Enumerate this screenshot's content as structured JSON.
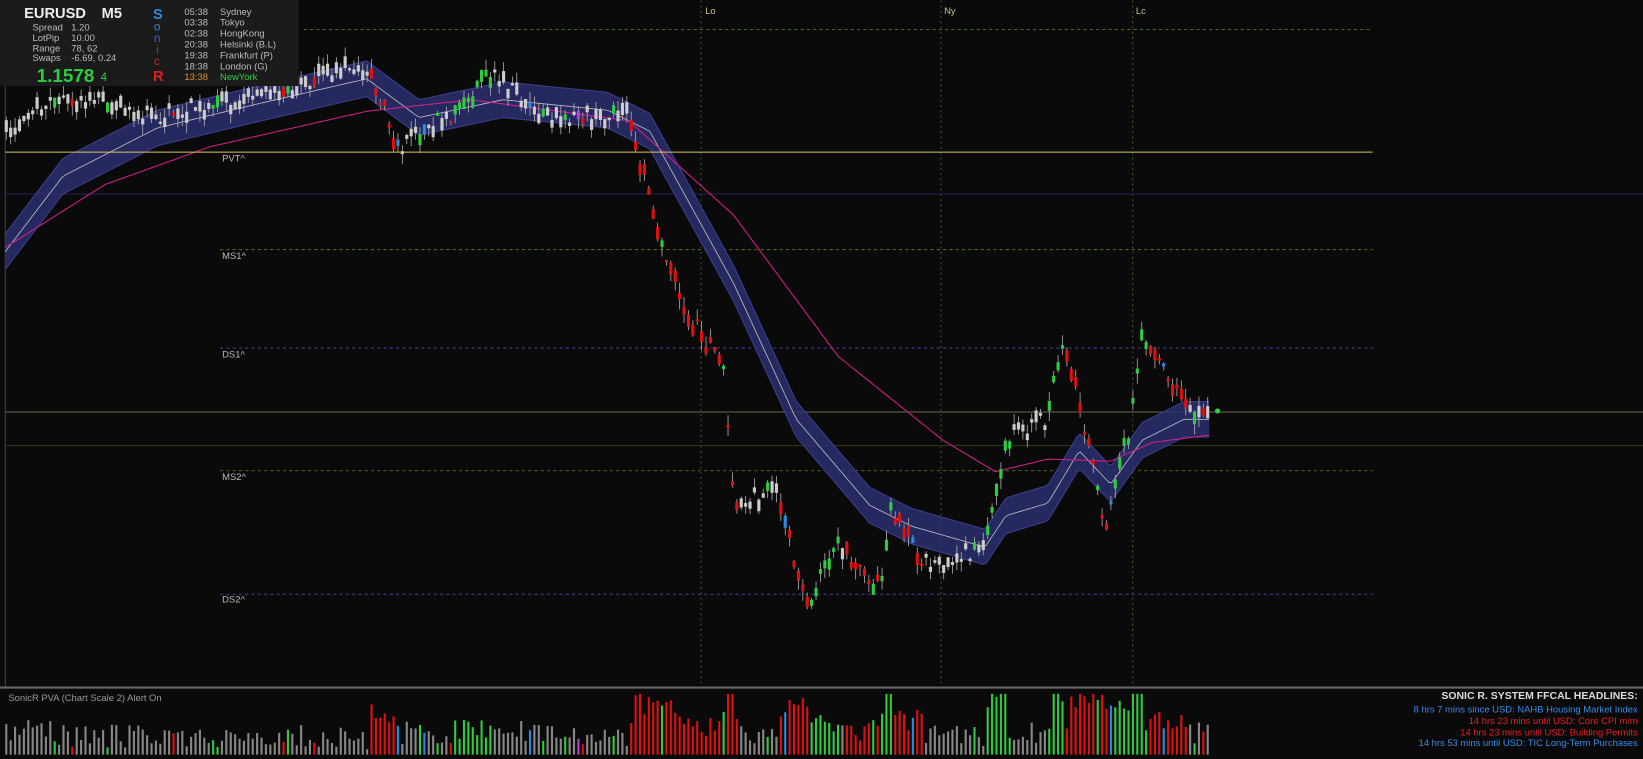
{
  "header": {
    "symbol": "EURUSD",
    "timeframe": "M5",
    "stats": [
      {
        "label": "Spread",
        "value": "1.20"
      },
      {
        "label": "LotPip",
        "value": "10.00"
      },
      {
        "label": "Range",
        "value": "78, 62"
      },
      {
        "label": "Swaps",
        "value": "-6.69, 0.24"
      }
    ],
    "price": "1.1578",
    "price_pip": "4",
    "sonic_letters": [
      "S",
      "o",
      "n",
      "i",
      "c",
      "R"
    ]
  },
  "sessions": [
    {
      "time": "05:38",
      "name": "Sydney"
    },
    {
      "time": "03:38",
      "name": "Tokyo"
    },
    {
      "time": "02:38",
      "name": "HongKong"
    },
    {
      "time": "20:38",
      "name": "Helsinki  (B.L)"
    },
    {
      "time": "19:38",
      "name": "Frankfurt  (P)"
    },
    {
      "time": "18:38",
      "name": "London  (G)"
    },
    {
      "time": "13:38",
      "name": "NewYork"
    }
  ],
  "levels": [
    "PVT^",
    "MS1^",
    "DS1^",
    "MS2^",
    "DS2^"
  ],
  "session_markers": [
    "Lo",
    "Ny",
    "Lc"
  ],
  "indicator": {
    "label": "SonicR PVA  (Chart Scale 2)   Alert On"
  },
  "headlines": {
    "title": "SONIC R. SYSTEM  FFCAL HEADLINES:",
    "items": [
      "8 hrs 7 mins since USD: NAHB Housing Market Index",
      "14 hrs 23 mins until USD: Core CPI m/m",
      "14 hrs 23 mins until USD: Building Permits",
      "14 hrs 53 mins until USD: TIC Long-Term Purchases"
    ]
  }
}
